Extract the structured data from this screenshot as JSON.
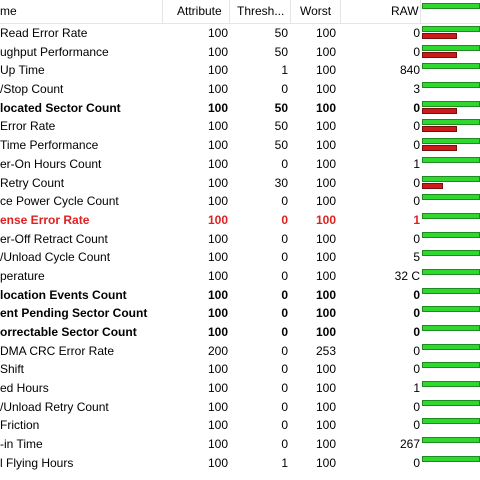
{
  "columns": {
    "name": "me",
    "attribute": "Attribute",
    "threshold": "Thresh...",
    "worst": "Worst",
    "raw": "RAW"
  },
  "colors": {
    "good": "#2fd82f",
    "warn": "#cc1b1b",
    "critical_text": "#e02020"
  },
  "rows": [
    {
      "name": "Read Error Rate",
      "attr": "100",
      "thr": "50",
      "worst": "100",
      "raw": "0",
      "style": "",
      "red_bar": 0.6
    },
    {
      "name": "ughput Performance",
      "attr": "100",
      "thr": "50",
      "worst": "100",
      "raw": "0",
      "style": "",
      "red_bar": 0.6
    },
    {
      "name": "Up Time",
      "attr": "100",
      "thr": "1",
      "worst": "100",
      "raw": "840",
      "style": "",
      "red_bar": 0
    },
    {
      "name": "/Stop Count",
      "attr": "100",
      "thr": "0",
      "worst": "100",
      "raw": "3",
      "style": "",
      "red_bar": 0
    },
    {
      "name": "located Sector Count",
      "attr": "100",
      "thr": "50",
      "worst": "100",
      "raw": "0",
      "style": "bold",
      "red_bar": 0.6
    },
    {
      "name": "Error Rate",
      "attr": "100",
      "thr": "50",
      "worst": "100",
      "raw": "0",
      "style": "",
      "red_bar": 0.6
    },
    {
      "name": "Time Performance",
      "attr": "100",
      "thr": "50",
      "worst": "100",
      "raw": "0",
      "style": "",
      "red_bar": 0.6
    },
    {
      "name": "er-On Hours Count",
      "attr": "100",
      "thr": "0",
      "worst": "100",
      "raw": "1",
      "style": "",
      "red_bar": 0
    },
    {
      "name": "Retry Count",
      "attr": "100",
      "thr": "30",
      "worst": "100",
      "raw": "0",
      "style": "",
      "red_bar": 0.36
    },
    {
      "name": "ce Power Cycle Count",
      "attr": "100",
      "thr": "0",
      "worst": "100",
      "raw": "0",
      "style": "",
      "red_bar": 0
    },
    {
      "name": "ense Error Rate",
      "attr": "100",
      "thr": "0",
      "worst": "100",
      "raw": "1",
      "style": "red",
      "red_bar": 0
    },
    {
      "name": "er-Off Retract Count",
      "attr": "100",
      "thr": "0",
      "worst": "100",
      "raw": "0",
      "style": "",
      "red_bar": 0
    },
    {
      "name": "/Unload Cycle Count",
      "attr": "100",
      "thr": "0",
      "worst": "100",
      "raw": "5",
      "style": "",
      "red_bar": 0
    },
    {
      "name": "perature",
      "attr": "100",
      "thr": "0",
      "worst": "100",
      "raw": "32 C",
      "style": "",
      "red_bar": 0
    },
    {
      "name": "location Events Count",
      "attr": "100",
      "thr": "0",
      "worst": "100",
      "raw": "0",
      "style": "bold",
      "red_bar": 0
    },
    {
      "name": "ent Pending Sector Count",
      "attr": "100",
      "thr": "0",
      "worst": "100",
      "raw": "0",
      "style": "bold",
      "red_bar": 0
    },
    {
      "name": "orrectable Sector Count",
      "attr": "100",
      "thr": "0",
      "worst": "100",
      "raw": "0",
      "style": "bold",
      "red_bar": 0
    },
    {
      "name": "DMA CRC Error Rate",
      "attr": "200",
      "thr": "0",
      "worst": "253",
      "raw": "0",
      "style": "",
      "red_bar": 0
    },
    {
      "name": "Shift",
      "attr": "100",
      "thr": "0",
      "worst": "100",
      "raw": "0",
      "style": "",
      "red_bar": 0
    },
    {
      "name": "ed Hours",
      "attr": "100",
      "thr": "0",
      "worst": "100",
      "raw": "1",
      "style": "",
      "red_bar": 0
    },
    {
      "name": "/Unload Retry Count",
      "attr": "100",
      "thr": "0",
      "worst": "100",
      "raw": "0",
      "style": "",
      "red_bar": 0
    },
    {
      "name": "Friction",
      "attr": "100",
      "thr": "0",
      "worst": "100",
      "raw": "0",
      "style": "",
      "red_bar": 0
    },
    {
      "name": "-in Time",
      "attr": "100",
      "thr": "0",
      "worst": "100",
      "raw": "267",
      "style": "",
      "red_bar": 0
    },
    {
      "name": "l Flying Hours",
      "attr": "100",
      "thr": "1",
      "worst": "100",
      "raw": "0",
      "style": "",
      "red_bar": 0
    }
  ]
}
